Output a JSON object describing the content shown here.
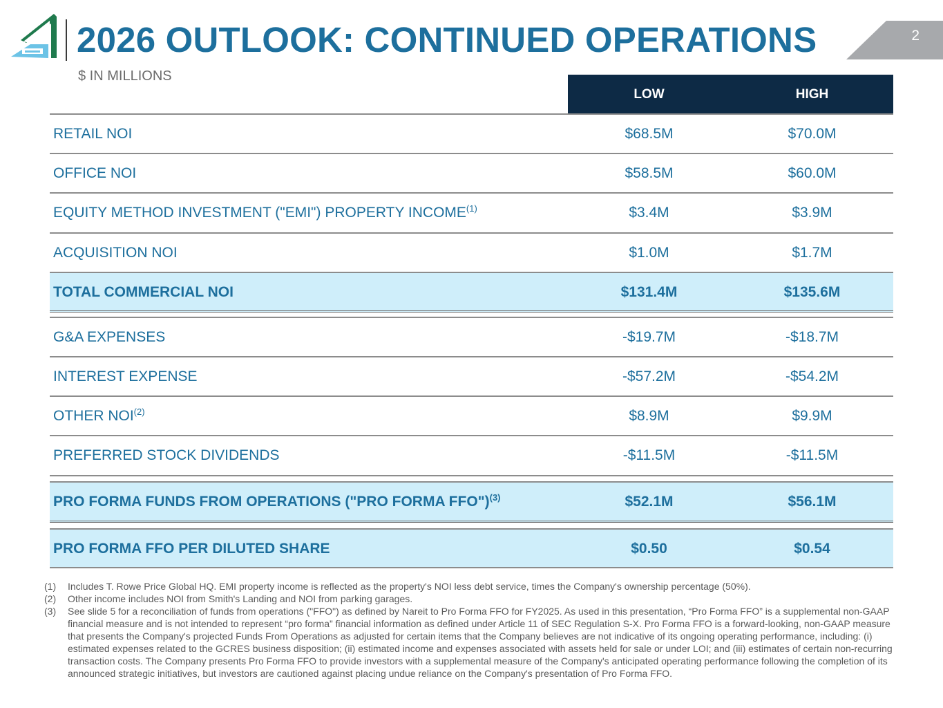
{
  "header": {
    "title": "2026 OUTLOOK: CONTINUED OPERATIONS",
    "subtitle": "$ IN MILLIONS",
    "page_number": "2"
  },
  "colors": {
    "title_blue": "#1d6f9d",
    "header_navy": "#0d2a45",
    "highlight_bg": "#cfeefa",
    "logo_green": "#1f7a4d",
    "logo_lightblue": "#6cc3e6",
    "tab_gray": "#a7a9ac"
  },
  "table": {
    "columns": {
      "low": "LOW",
      "high": "HIGH"
    },
    "rows": [
      {
        "label": "RETAIL NOI",
        "sup": "",
        "low": "$68.5M",
        "high": "$70.0M"
      },
      {
        "label": "OFFICE NOI",
        "sup": "",
        "low": "$58.5M",
        "high": "$60.0M"
      },
      {
        "label": "EQUITY METHOD INVESTMENT (\"EMI\") PROPERTY INCOME",
        "sup": "(1)",
        "low": "$3.4M",
        "high": "$3.9M"
      },
      {
        "label": "ACQUISITION NOI",
        "sup": "",
        "low": "$1.0M",
        "high": "$1.7M"
      }
    ],
    "total_commercial": {
      "label": "TOTAL COMMERCIAL NOI",
      "low": "$131.4M",
      "high": "$135.6M"
    },
    "rows2": [
      {
        "label": "G&A EXPENSES",
        "sup": "",
        "low": "-$19.7M",
        "high": "-$18.7M"
      },
      {
        "label": "INTEREST EXPENSE",
        "sup": "",
        "low": "-$57.2M",
        "high": "-$54.2M"
      },
      {
        "label": "OTHER NOI",
        "sup": "(2)",
        "low": "$8.9M",
        "high": "$9.9M"
      },
      {
        "label": "PREFERRED STOCK DIVIDENDS",
        "sup": "",
        "low": "-$11.5M",
        "high": "-$11.5M"
      }
    ],
    "pro_forma_ffo": {
      "label": "PRO FORMA FUNDS FROM OPERATIONS (\"PRO FORMA FFO\")",
      "sup": "(3)",
      "low": "$52.1M",
      "high": "$56.1M"
    },
    "ffo_per_share": {
      "label": "PRO FORMA FFO PER DILUTED SHARE",
      "low": "$0.50",
      "high": "$0.54"
    }
  },
  "footnotes": [
    {
      "num": "(1)",
      "text": "Includes T. Rowe Price Global HQ. EMI property income is reflected as the property's NOI less debt service, times the Company's ownership percentage (50%)."
    },
    {
      "num": "(2)",
      "text": "Other income includes NOI from Smith's Landing and NOI from parking garages."
    },
    {
      "num": "(3)",
      "text": "See slide 5 for a reconciliation of funds from operations (\"FFO\") as defined by Nareit to Pro Forma FFO for FY2025. As used in this presentation, “Pro Forma FFO” is a supplemental non-GAAP financial measure and is not intended to represent “pro forma” financial information as defined under Article 11 of SEC Regulation S-X.  Pro Forma FFO is a forward-looking, non-GAAP measure that presents the Company's projected Funds From Operations as adjusted for certain items that the Company believes are not indicative of its ongoing operating performance, including: (i) estimated expenses related to the GCRES business disposition; (ii) estimated income and expenses associated with assets held for sale or under LOI; and (iii) estimates of certain non-recurring transaction costs. The Company presents Pro Forma FFO to provide investors with a supplemental measure of the Company's anticipated operating performance following the completion of its announced strategic initiatives, but investors are cautioned against placing undue reliance on the Company's presentation of Pro Forma FFO."
    }
  ]
}
